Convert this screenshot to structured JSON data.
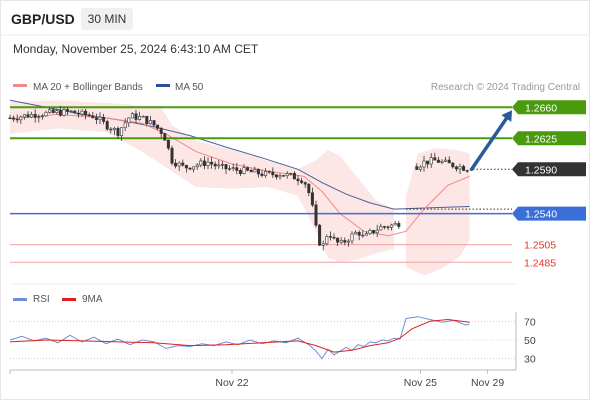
{
  "header": {
    "symbol": "GBP/USD",
    "timeframe": "30 MIN",
    "datetime": "Monday, November 25, 2024 6:43:10 AM CET"
  },
  "legend": {
    "ma20": "MA 20 + Bollinger Bands",
    "ma50": "MA 50",
    "credit": "Research © 2024 Trading Central",
    "rsi": "RSI",
    "rsi_ma": "9MA"
  },
  "colors": {
    "green": "#4a9a0e",
    "blue": "#3a6fd8",
    "red": "#e0362c",
    "arrow": "#2a5a9c",
    "candle": "#333333",
    "band_fill": "#fde2e2",
    "ma20": "#f08a8a",
    "ma50": "#4a5f9a",
    "rsi": "#6b8fd8",
    "rsi_ma": "#e02020",
    "current_badge": "#333333"
  },
  "chart_data": [
    {
      "type": "candlestick",
      "title": "GBP/USD",
      "x_tick_labels": [
        "Nov 22",
        "Nov 25",
        "Nov 29"
      ],
      "y_range": [
        1.2465,
        1.2675
      ],
      "current_price": 1.259,
      "levels": [
        {
          "value": 1.266,
          "label": "1.2660",
          "kind": "resistance"
        },
        {
          "value": 1.2625,
          "label": "1.2625",
          "kind": "resistance"
        },
        {
          "value": 1.254,
          "label": "1.2540",
          "kind": "pivot"
        },
        {
          "value": 1.2505,
          "label": "1.2505",
          "kind": "support"
        },
        {
          "value": 1.2485,
          "label": "1.2485",
          "kind": "support"
        }
      ],
      "current_label": "1.2590",
      "arrow": {
        "from": 1.259,
        "to": 1.266,
        "direction": "up"
      },
      "close_path": [
        [
          0,
          1.2648
        ],
        [
          10,
          1.265
        ],
        [
          20,
          1.2652
        ],
        [
          30,
          1.2653
        ],
        [
          40,
          1.2654
        ],
        [
          50,
          1.2655
        ],
        [
          60,
          1.2652
        ],
        [
          70,
          1.265
        ],
        [
          80,
          1.264
        ],
        [
          90,
          1.2632
        ],
        [
          100,
          1.265
        ],
        [
          110,
          1.2648
        ],
        [
          120,
          1.264
        ],
        [
          128,
          1.263
        ],
        [
          135,
          1.26
        ],
        [
          145,
          1.2592
        ],
        [
          155,
          1.2595
        ],
        [
          165,
          1.2598
        ],
        [
          175,
          1.2592
        ],
        [
          185,
          1.259
        ],
        [
          195,
          1.2588
        ],
        [
          205,
          1.2586
        ],
        [
          215,
          1.2584
        ],
        [
          225,
          1.2585
        ],
        [
          235,
          1.2582
        ],
        [
          245,
          1.2578
        ],
        [
          250,
          1.256
        ],
        [
          253,
          1.254
        ],
        [
          256,
          1.2515
        ],
        [
          260,
          1.25
        ],
        [
          265,
          1.252
        ],
        [
          270,
          1.251
        ],
        [
          275,
          1.2505
        ],
        [
          280,
          1.251
        ],
        [
          285,
          1.2515
        ],
        [
          290,
          1.252
        ],
        [
          295,
          1.2512
        ],
        [
          300,
          1.2518
        ],
        [
          305,
          1.2522
        ],
        [
          310,
          1.2525
        ],
        [
          315,
          1.2526
        ],
        [
          320,
          1.2527
        ],
        [
          325,
          1.253
        ],
        [
          338,
          1.2593
        ],
        [
          345,
          1.2598
        ],
        [
          355,
          1.26
        ],
        [
          365,
          1.2596
        ],
        [
          375,
          1.2593
        ],
        [
          383,
          1.259
        ]
      ],
      "ma20": [
        [
          0,
          1.2647
        ],
        [
          40,
          1.2652
        ],
        [
          80,
          1.2648
        ],
        [
          110,
          1.2642
        ],
        [
          130,
          1.263
        ],
        [
          155,
          1.261
        ],
        [
          185,
          1.2596
        ],
        [
          215,
          1.2588
        ],
        [
          245,
          1.2582
        ],
        [
          260,
          1.2565
        ],
        [
          275,
          1.254
        ],
        [
          295,
          1.252
        ],
        [
          315,
          1.2515
        ],
        [
          330,
          1.252
        ],
        [
          345,
          1.2545
        ],
        [
          365,
          1.2572
        ],
        [
          383,
          1.2582
        ]
      ],
      "ma50": [
        [
          0,
          1.2668
        ],
        [
          30,
          1.266
        ],
        [
          60,
          1.2652
        ],
        [
          90,
          1.2646
        ],
        [
          120,
          1.2638
        ],
        [
          150,
          1.2628
        ],
        [
          180,
          1.2615
        ],
        [
          210,
          1.2603
        ],
        [
          240,
          1.259
        ],
        [
          260,
          1.2575
        ],
        [
          280,
          1.2562
        ],
        [
          300,
          1.2552
        ],
        [
          320,
          1.2545
        ],
        [
          340,
          1.2546
        ],
        [
          360,
          1.2547
        ],
        [
          383,
          1.2548
        ]
      ],
      "bb_upper": [
        [
          0,
          1.2666
        ],
        [
          40,
          1.2668
        ],
        [
          80,
          1.2665
        ],
        [
          110,
          1.2662
        ],
        [
          125,
          1.2662
        ],
        [
          135,
          1.264
        ],
        [
          155,
          1.2622
        ],
        [
          185,
          1.2612
        ],
        [
          215,
          1.26
        ],
        [
          240,
          1.259
        ],
        [
          255,
          1.26
        ],
        [
          265,
          1.2612
        ],
        [
          275,
          1.2605
        ],
        [
          290,
          1.258
        ],
        [
          305,
          1.2555
        ],
        [
          320,
          1.2545
        ],
        [
          330,
          1.256
        ],
        [
          340,
          1.2608
        ],
        [
          355,
          1.2614
        ],
        [
          370,
          1.2612
        ],
        [
          383,
          1.2608
        ]
      ],
      "bb_lower": [
        [
          0,
          1.263
        ],
        [
          40,
          1.2636
        ],
        [
          80,
          1.2632
        ],
        [
          110,
          1.261
        ],
        [
          130,
          1.2592
        ],
        [
          155,
          1.257
        ],
        [
          185,
          1.2568
        ],
        [
          215,
          1.257
        ],
        [
          240,
          1.256
        ],
        [
          255,
          1.252
        ],
        [
          265,
          1.249
        ],
        [
          275,
          1.2485
        ],
        [
          290,
          1.2488
        ],
        [
          305,
          1.2495
        ],
        [
          320,
          1.25
        ],
        [
          330,
          1.248
        ],
        [
          345,
          1.247
        ],
        [
          360,
          1.2478
        ],
        [
          375,
          1.2492
        ],
        [
          383,
          1.251
        ]
      ]
    },
    {
      "type": "line",
      "title": "RSI",
      "y_tick_labels": [
        "70",
        "50",
        "30"
      ],
      "y_range": [
        20,
        80
      ],
      "series": [
        {
          "name": "RSI",
          "values": [
            [
              0,
              50
            ],
            [
              10,
              54
            ],
            [
              20,
              49
            ],
            [
              30,
              52
            ],
            [
              40,
              47
            ],
            [
              50,
              55
            ],
            [
              60,
              48
            ],
            [
              70,
              53
            ],
            [
              80,
              46
            ],
            [
              90,
              51
            ],
            [
              100,
              45
            ],
            [
              110,
              50
            ],
            [
              120,
              48
            ],
            [
              130,
              41
            ],
            [
              140,
              44
            ],
            [
              150,
              43
            ],
            [
              160,
              46
            ],
            [
              170,
              44
            ],
            [
              180,
              48
            ],
            [
              190,
              45
            ],
            [
              200,
              50
            ],
            [
              210,
              46
            ],
            [
              220,
              49
            ],
            [
              230,
              47
            ],
            [
              240,
              52
            ],
            [
              250,
              44
            ],
            [
              255,
              38
            ],
            [
              260,
              30
            ],
            [
              265,
              40
            ],
            [
              270,
              34
            ],
            [
              275,
              38
            ],
            [
              280,
              42
            ],
            [
              285,
              39
            ],
            [
              290,
              45
            ],
            [
              295,
              43
            ],
            [
              300,
              48
            ],
            [
              305,
              47
            ],
            [
              310,
              50
            ],
            [
              315,
              49
            ],
            [
              320,
              52
            ],
            [
              325,
              51
            ],
            [
              330,
              73
            ],
            [
              340,
              75
            ],
            [
              350,
              72
            ],
            [
              360,
              69
            ],
            [
              370,
              71
            ],
            [
              380,
              66
            ],
            [
              383,
              67
            ]
          ]
        },
        {
          "name": "9MA",
          "values": [
            [
              0,
              48
            ],
            [
              30,
              50
            ],
            [
              60,
              49
            ],
            [
              90,
              48
            ],
            [
              120,
              47
            ],
            [
              150,
              44
            ],
            [
              180,
              45
            ],
            [
              210,
              47
            ],
            [
              240,
              49
            ],
            [
              255,
              44
            ],
            [
              270,
              37
            ],
            [
              285,
              39
            ],
            [
              300,
              44
            ],
            [
              315,
              47
            ],
            [
              325,
              52
            ],
            [
              335,
              62
            ],
            [
              350,
              70
            ],
            [
              365,
              72
            ],
            [
              383,
              69
            ]
          ]
        }
      ]
    }
  ]
}
